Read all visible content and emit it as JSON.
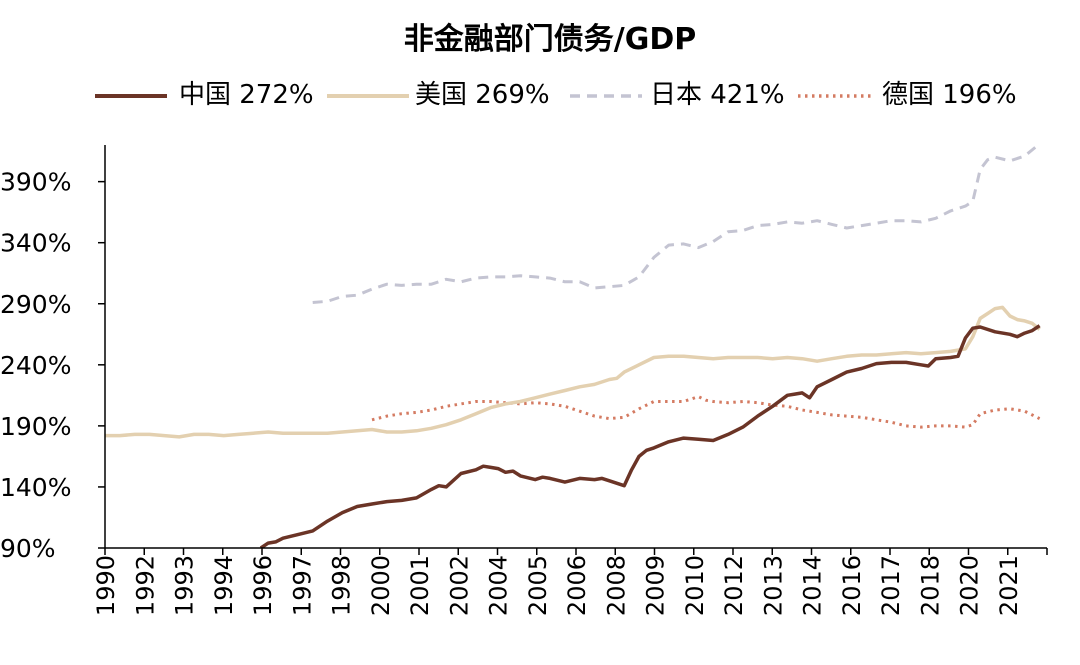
{
  "chart_data": {
    "type": "line",
    "title": "非金融部门债务/GDP",
    "xlabel": "",
    "ylabel": "",
    "x_start": 1990.0,
    "x_end": 2021.75,
    "ylim": [
      90,
      420
    ],
    "grid": false,
    "legend_position": "top",
    "y_ticks": [
      "90%",
      "140%",
      "190%",
      "240%",
      "290%",
      "340%",
      "390%"
    ],
    "y_tick_values": [
      90,
      140,
      190,
      240,
      290,
      340,
      390
    ],
    "x_ticks": [
      "1990",
      "1992",
      "1993",
      "1994",
      "1996",
      "1997",
      "1998",
      "2000",
      "2001",
      "2002",
      "2004",
      "2005",
      "2006",
      "2008",
      "2009",
      "2010",
      "2012",
      "2013",
      "2014",
      "2016",
      "2017",
      "2018",
      "2020",
      "2021"
    ],
    "series": [
      {
        "name": "中国",
        "legend_label": "中国  272%",
        "color": "#6b3426",
        "dash": "solid",
        "points": [
          [
            1995.25,
            90
          ],
          [
            1995.5,
            94
          ],
          [
            1995.75,
            95
          ],
          [
            1996.0,
            98
          ],
          [
            1996.5,
            101
          ],
          [
            1997.0,
            104
          ],
          [
            1997.5,
            112
          ],
          [
            1998.0,
            119
          ],
          [
            1998.5,
            124
          ],
          [
            1999.0,
            126
          ],
          [
            1999.5,
            128
          ],
          [
            2000.0,
            129
          ],
          [
            2000.5,
            131
          ],
          [
            2001.0,
            138
          ],
          [
            2001.25,
            141
          ],
          [
            2001.5,
            140
          ],
          [
            2002.0,
            151
          ],
          [
            2002.5,
            154
          ],
          [
            2002.75,
            157
          ],
          [
            2003.0,
            156
          ],
          [
            2003.25,
            155
          ],
          [
            2003.5,
            152
          ],
          [
            2003.75,
            153
          ],
          [
            2004.0,
            149
          ],
          [
            2004.5,
            146
          ],
          [
            2004.75,
            148
          ],
          [
            2005.0,
            147
          ],
          [
            2005.5,
            144
          ],
          [
            2006.0,
            147
          ],
          [
            2006.5,
            146
          ],
          [
            2006.75,
            147
          ],
          [
            2007.0,
            145
          ],
          [
            2007.5,
            141
          ],
          [
            2007.75,
            154
          ],
          [
            2008.0,
            165
          ],
          [
            2008.25,
            170
          ],
          [
            2008.5,
            172
          ],
          [
            2009.0,
            177
          ],
          [
            2009.5,
            180
          ],
          [
            2010.0,
            179
          ],
          [
            2010.5,
            178
          ],
          [
            2011.0,
            183
          ],
          [
            2011.5,
            189
          ],
          [
            2012.0,
            198
          ],
          [
            2012.5,
            206
          ],
          [
            2013.0,
            215
          ],
          [
            2013.25,
            216
          ],
          [
            2013.5,
            217
          ],
          [
            2013.75,
            213
          ],
          [
            2014.0,
            222
          ],
          [
            2014.5,
            228
          ],
          [
            2015.0,
            234
          ],
          [
            2015.5,
            237
          ],
          [
            2016.0,
            241
          ],
          [
            2016.5,
            242
          ],
          [
            2017.0,
            242
          ],
          [
            2017.5,
            240
          ],
          [
            2017.75,
            239
          ],
          [
            2018.0,
            245
          ],
          [
            2018.5,
            246
          ],
          [
            2018.75,
            247
          ],
          [
            2019.0,
            262
          ],
          [
            2019.25,
            270
          ],
          [
            2019.5,
            271
          ],
          [
            2020.0,
            267
          ],
          [
            2020.5,
            265
          ],
          [
            2020.75,
            263
          ],
          [
            2021.0,
            266
          ],
          [
            2021.25,
            268
          ],
          [
            2021.5,
            272
          ]
        ]
      },
      {
        "name": "美国",
        "legend_label": "美国   269%",
        "color": "#e3d0b0",
        "dash": "solid",
        "points": [
          [
            1990.0,
            182
          ],
          [
            1990.5,
            182
          ],
          [
            1991.0,
            183
          ],
          [
            1991.5,
            183
          ],
          [
            1992.0,
            182
          ],
          [
            1992.5,
            181
          ],
          [
            1993.0,
            183
          ],
          [
            1993.5,
            183
          ],
          [
            1994.0,
            182
          ],
          [
            1994.5,
            183
          ],
          [
            1995.0,
            184
          ],
          [
            1995.5,
            185
          ],
          [
            1996.0,
            184
          ],
          [
            1996.5,
            184
          ],
          [
            1997.0,
            184
          ],
          [
            1997.5,
            184
          ],
          [
            1998.0,
            185
          ],
          [
            1998.5,
            186
          ],
          [
            1999.0,
            187
          ],
          [
            1999.5,
            185
          ],
          [
            2000.0,
            185
          ],
          [
            2000.5,
            186
          ],
          [
            2001.0,
            188
          ],
          [
            2001.5,
            191
          ],
          [
            2002.0,
            195
          ],
          [
            2002.5,
            200
          ],
          [
            2003.0,
            205
          ],
          [
            2003.5,
            208
          ],
          [
            2004.0,
            210
          ],
          [
            2004.5,
            213
          ],
          [
            2005.0,
            216
          ],
          [
            2005.5,
            219
          ],
          [
            2006.0,
            222
          ],
          [
            2006.5,
            224
          ],
          [
            2007.0,
            228
          ],
          [
            2007.25,
            229
          ],
          [
            2007.5,
            234
          ],
          [
            2008.0,
            240
          ],
          [
            2008.5,
            246
          ],
          [
            2009.0,
            247
          ],
          [
            2009.5,
            247
          ],
          [
            2010.0,
            246
          ],
          [
            2010.5,
            245
          ],
          [
            2011.0,
            246
          ],
          [
            2011.5,
            246
          ],
          [
            2012.0,
            246
          ],
          [
            2012.5,
            245
          ],
          [
            2013.0,
            246
          ],
          [
            2013.5,
            245
          ],
          [
            2014.0,
            243
          ],
          [
            2014.5,
            245
          ],
          [
            2015.0,
            247
          ],
          [
            2015.5,
            248
          ],
          [
            2016.0,
            248
          ],
          [
            2016.5,
            249
          ],
          [
            2017.0,
            250
          ],
          [
            2017.5,
            249
          ],
          [
            2018.0,
            250
          ],
          [
            2018.5,
            251
          ],
          [
            2019.0,
            253
          ],
          [
            2019.25,
            263
          ],
          [
            2019.5,
            278
          ],
          [
            2019.75,
            282
          ],
          [
            2020.0,
            286
          ],
          [
            2020.25,
            287
          ],
          [
            2020.5,
            280
          ],
          [
            2020.75,
            277
          ],
          [
            2021.0,
            276
          ],
          [
            2021.25,
            274
          ],
          [
            2021.5,
            269
          ]
        ]
      },
      {
        "name": "日本",
        "legend_label": "日本  421%",
        "color": "#c4c4d2",
        "dash": "dashed",
        "points": [
          [
            1997.0,
            291
          ],
          [
            1997.5,
            292
          ],
          [
            1998.0,
            296
          ],
          [
            1998.5,
            297
          ],
          [
            1999.0,
            302
          ],
          [
            1999.5,
            306
          ],
          [
            2000.0,
            305
          ],
          [
            2000.5,
            306
          ],
          [
            2001.0,
            306
          ],
          [
            2001.5,
            310
          ],
          [
            2002.0,
            308
          ],
          [
            2002.5,
            311
          ],
          [
            2003.0,
            312
          ],
          [
            2003.5,
            312
          ],
          [
            2004.0,
            313
          ],
          [
            2004.5,
            312
          ],
          [
            2005.0,
            311
          ],
          [
            2005.5,
            308
          ],
          [
            2006.0,
            308
          ],
          [
            2006.5,
            303
          ],
          [
            2007.0,
            304
          ],
          [
            2007.5,
            305
          ],
          [
            2008.0,
            312
          ],
          [
            2008.5,
            328
          ],
          [
            2009.0,
            338
          ],
          [
            2009.5,
            339
          ],
          [
            2010.0,
            336
          ],
          [
            2010.5,
            341
          ],
          [
            2011.0,
            349
          ],
          [
            2011.5,
            350
          ],
          [
            2012.0,
            354
          ],
          [
            2012.5,
            355
          ],
          [
            2013.0,
            357
          ],
          [
            2013.5,
            356
          ],
          [
            2014.0,
            358
          ],
          [
            2014.5,
            355
          ],
          [
            2015.0,
            352
          ],
          [
            2015.5,
            354
          ],
          [
            2016.0,
            356
          ],
          [
            2016.5,
            358
          ],
          [
            2017.0,
            358
          ],
          [
            2017.5,
            357
          ],
          [
            2018.0,
            360
          ],
          [
            2018.5,
            366
          ],
          [
            2019.0,
            370
          ],
          [
            2019.25,
            374
          ],
          [
            2019.5,
            400
          ],
          [
            2019.75,
            408
          ],
          [
            2020.0,
            410
          ],
          [
            2020.5,
            407
          ],
          [
            2021.0,
            411
          ],
          [
            2021.5,
            421
          ]
        ]
      },
      {
        "name": "德国",
        "legend_label": "德国  196%",
        "color": "#d47b62",
        "dash": "dotted",
        "points": [
          [
            1999.0,
            195
          ],
          [
            1999.5,
            198
          ],
          [
            2000.0,
            200
          ],
          [
            2000.5,
            201
          ],
          [
            2001.0,
            203
          ],
          [
            2001.5,
            206
          ],
          [
            2002.0,
            208
          ],
          [
            2002.5,
            210
          ],
          [
            2003.0,
            210
          ],
          [
            2003.5,
            209
          ],
          [
            2004.0,
            208
          ],
          [
            2004.5,
            209
          ],
          [
            2005.0,
            208
          ],
          [
            2005.5,
            206
          ],
          [
            2006.0,
            202
          ],
          [
            2006.5,
            198
          ],
          [
            2007.0,
            196
          ],
          [
            2007.5,
            197
          ],
          [
            2008.0,
            204
          ],
          [
            2008.5,
            210
          ],
          [
            2009.0,
            210
          ],
          [
            2009.5,
            210
          ],
          [
            2010.0,
            214
          ],
          [
            2010.25,
            211
          ],
          [
            2010.5,
            210
          ],
          [
            2011.0,
            209
          ],
          [
            2011.5,
            210
          ],
          [
            2012.0,
            209
          ],
          [
            2012.5,
            207
          ],
          [
            2013.0,
            206
          ],
          [
            2013.5,
            203
          ],
          [
            2014.0,
            201
          ],
          [
            2014.5,
            199
          ],
          [
            2015.0,
            198
          ],
          [
            2015.5,
            197
          ],
          [
            2016.0,
            195
          ],
          [
            2016.5,
            193
          ],
          [
            2017.0,
            190
          ],
          [
            2017.5,
            189
          ],
          [
            2018.0,
            190
          ],
          [
            2018.5,
            190
          ],
          [
            2019.0,
            189
          ],
          [
            2019.25,
            191
          ],
          [
            2019.5,
            200
          ],
          [
            2020.0,
            203
          ],
          [
            2020.5,
            204
          ],
          [
            2021.0,
            202
          ],
          [
            2021.5,
            196
          ]
        ]
      }
    ]
  }
}
